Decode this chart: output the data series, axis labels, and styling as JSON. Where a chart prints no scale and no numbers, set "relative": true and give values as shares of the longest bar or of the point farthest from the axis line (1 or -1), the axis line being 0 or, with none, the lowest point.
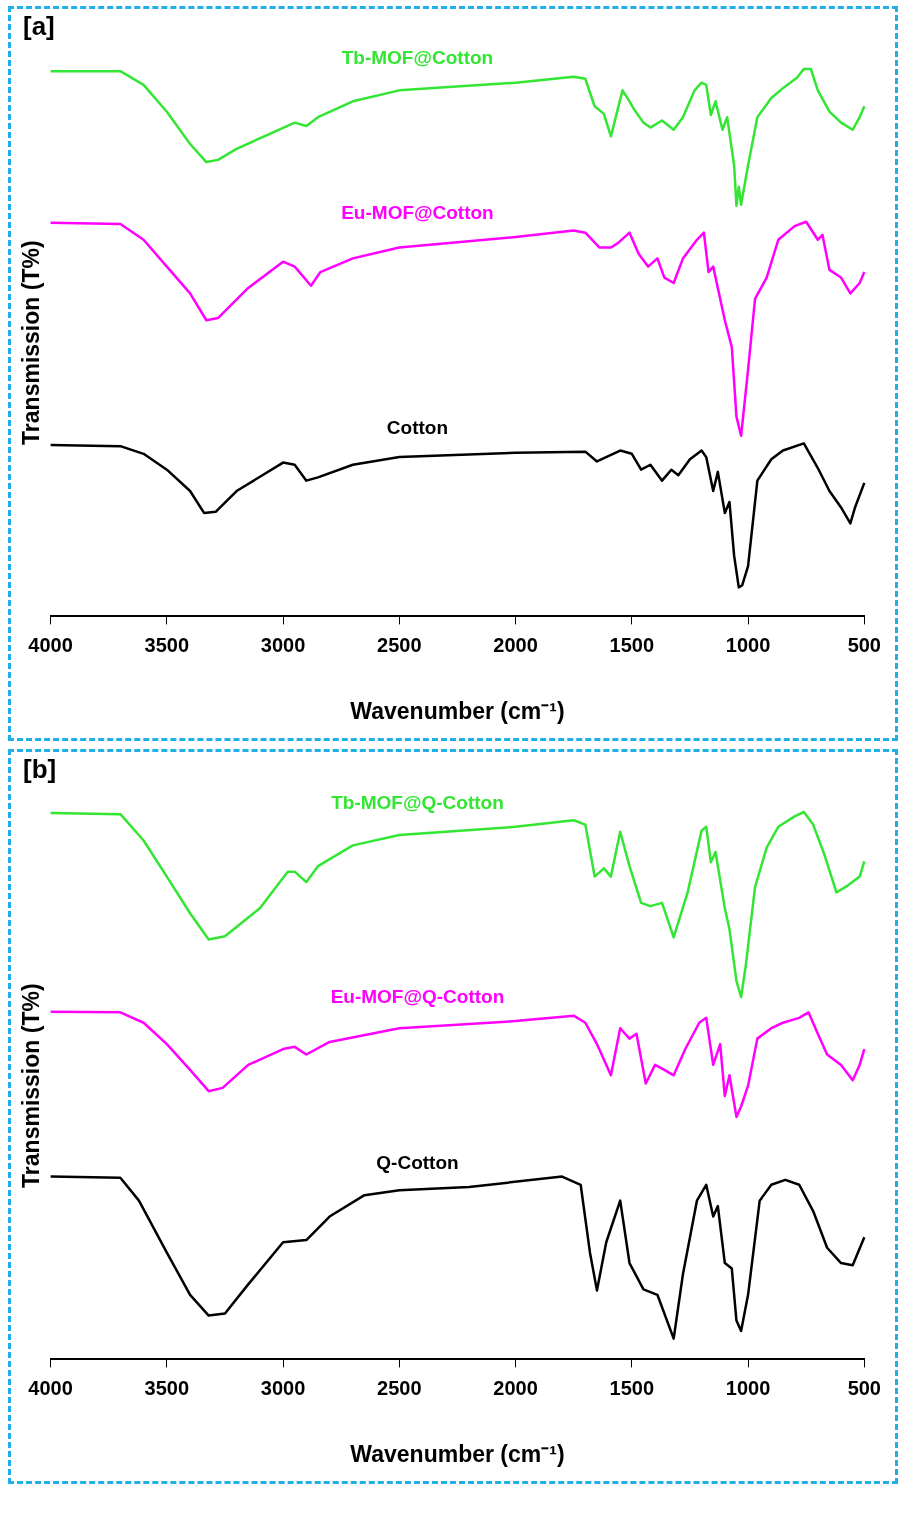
{
  "chart_data": [
    {
      "type": "line",
      "relative": true,
      "annotations": [
        "[a]"
      ],
      "xlabel": "Wavenumber (cm⁻¹)",
      "ylabel": "Transmission (T%)",
      "xlim": [
        4000,
        500
      ],
      "xticks": [
        4000,
        3500,
        3000,
        2500,
        2000,
        1500,
        1000,
        500
      ],
      "grid": false,
      "legend": false,
      "series": [
        {
          "name": "Tb-MOF@Cotton",
          "color": "#33e633",
          "x": [
            4000,
            3700,
            3600,
            3500,
            3400,
            3330,
            3280,
            3200,
            3050,
            2950,
            2900,
            2850,
            2700,
            2500,
            2000,
            1750,
            1700,
            1660,
            1620,
            1590,
            1540,
            1510,
            1490,
            1450,
            1420,
            1370,
            1320,
            1280,
            1230,
            1200,
            1180,
            1160,
            1140,
            1110,
            1090,
            1060,
            1050,
            1040,
            1030,
            1000,
            960,
            900,
            850,
            790,
            760,
            730,
            700,
            650,
            600,
            550,
            520,
            500
          ],
          "values": [
            0.996,
            0.996,
            0.971,
            0.922,
            0.863,
            0.83,
            0.834,
            0.854,
            0.883,
            0.902,
            0.896,
            0.912,
            0.941,
            0.961,
            0.975,
            0.986,
            0.982,
            0.932,
            0.918,
            0.877,
            0.961,
            0.941,
            0.926,
            0.902,
            0.893,
            0.906,
            0.889,
            0.912,
            0.961,
            0.975,
            0.971,
            0.916,
            0.941,
            0.889,
            0.912,
            0.824,
            0.75,
            0.785,
            0.752,
            0.824,
            0.912,
            0.947,
            0.965,
            0.984,
            1.0,
            1.0,
            0.961,
            0.922,
            0.902,
            0.889,
            0.912,
            0.932
          ]
        },
        {
          "name": "Eu-MOF@Cotton",
          "color": "#ff00ff",
          "x": [
            4000,
            3700,
            3600,
            3500,
            3400,
            3330,
            3280,
            3150,
            3000,
            2950,
            2880,
            2840,
            2700,
            2500,
            2000,
            1750,
            1700,
            1640,
            1590,
            1560,
            1510,
            1470,
            1430,
            1390,
            1360,
            1320,
            1280,
            1220,
            1190,
            1170,
            1150,
            1100,
            1070,
            1050,
            1030,
            1000,
            970,
            920,
            870,
            800,
            750,
            700,
            680,
            650,
            600,
            560,
            520,
            500
          ],
          "values": [
            0.719,
            0.717,
            0.688,
            0.639,
            0.59,
            0.541,
            0.545,
            0.6,
            0.648,
            0.639,
            0.604,
            0.629,
            0.654,
            0.674,
            0.693,
            0.705,
            0.701,
            0.674,
            0.674,
            0.682,
            0.701,
            0.662,
            0.639,
            0.654,
            0.619,
            0.609,
            0.654,
            0.688,
            0.701,
            0.629,
            0.639,
            0.541,
            0.492,
            0.365,
            0.33,
            0.451,
            0.58,
            0.619,
            0.688,
            0.713,
            0.721,
            0.688,
            0.697,
            0.633,
            0.619,
            0.59,
            0.609,
            0.629
          ]
        },
        {
          "name": "Cotton",
          "color": "#000000",
          "x": [
            4000,
            3700,
            3600,
            3500,
            3400,
            3340,
            3290,
            3200,
            3000,
            2950,
            2900,
            2850,
            2700,
            2500,
            2000,
            1700,
            1650,
            1550,
            1500,
            1460,
            1420,
            1370,
            1330,
            1300,
            1250,
            1200,
            1180,
            1150,
            1130,
            1100,
            1080,
            1060,
            1040,
            1025,
            1000,
            960,
            900,
            850,
            760,
            700,
            650,
            600,
            560,
            540,
            500
          ],
          "values": [
            0.313,
            0.311,
            0.297,
            0.268,
            0.229,
            0.189,
            0.191,
            0.229,
            0.281,
            0.277,
            0.248,
            0.254,
            0.277,
            0.291,
            0.299,
            0.301,
            0.283,
            0.303,
            0.297,
            0.268,
            0.277,
            0.248,
            0.268,
            0.258,
            0.287,
            0.303,
            0.291,
            0.229,
            0.264,
            0.189,
            0.209,
            0.111,
            0.053,
            0.057,
            0.092,
            0.248,
            0.287,
            0.303,
            0.316,
            0.271,
            0.229,
            0.199,
            0.17,
            0.199,
            0.244
          ]
        }
      ]
    },
    {
      "type": "line",
      "relative": true,
      "annotations": [
        "[b]"
      ],
      "xlabel": "Wavenumber (cm⁻¹)",
      "ylabel": "Transmission (T%)",
      "xlim": [
        4000,
        500
      ],
      "xticks": [
        4000,
        3500,
        3000,
        2500,
        2000,
        1500,
        1000,
        500
      ],
      "grid": false,
      "legend": false,
      "series": [
        {
          "name": "Tb-MOF@Q-Cotton",
          "color": "#33e633",
          "x": [
            4000,
            3700,
            3600,
            3500,
            3400,
            3320,
            3250,
            3100,
            2980,
            2950,
            2900,
            2850,
            2700,
            2500,
            2000,
            1750,
            1700,
            1660,
            1620,
            1590,
            1550,
            1510,
            1460,
            1420,
            1370,
            1320,
            1260,
            1200,
            1180,
            1160,
            1140,
            1100,
            1080,
            1050,
            1030,
            1010,
            970,
            920,
            870,
            800,
            760,
            720,
            670,
            620,
            570,
            520,
            500
          ],
          "values": [
            0.998,
            0.996,
            0.948,
            0.882,
            0.815,
            0.767,
            0.773,
            0.824,
            0.891,
            0.891,
            0.872,
            0.901,
            0.939,
            0.958,
            0.973,
            0.985,
            0.977,
            0.882,
            0.897,
            0.882,
            0.964,
            0.901,
            0.834,
            0.828,
            0.834,
            0.771,
            0.853,
            0.966,
            0.973,
            0.908,
            0.927,
            0.824,
            0.786,
            0.691,
            0.662,
            0.719,
            0.863,
            0.935,
            0.973,
            0.992,
            1.0,
            0.977,
            0.92,
            0.853,
            0.866,
            0.882,
            0.91
          ]
        },
        {
          "name": "Eu-MOF@Q-Cotton",
          "color": "#ff00ff",
          "x": [
            4000,
            3700,
            3600,
            3500,
            3400,
            3320,
            3260,
            3150,
            3000,
            2950,
            2900,
            2800,
            2500,
            2000,
            1750,
            1700,
            1650,
            1590,
            1550,
            1510,
            1480,
            1440,
            1400,
            1360,
            1320,
            1270,
            1210,
            1180,
            1150,
            1120,
            1100,
            1080,
            1050,
            1030,
            1000,
            960,
            900,
            850,
            780,
            740,
            700,
            660,
            600,
            550,
            520,
            500
          ],
          "values": [
            0.635,
            0.634,
            0.615,
            0.576,
            0.529,
            0.49,
            0.496,
            0.538,
            0.567,
            0.571,
            0.557,
            0.58,
            0.605,
            0.618,
            0.628,
            0.615,
            0.576,
            0.519,
            0.605,
            0.586,
            0.595,
            0.504,
            0.538,
            0.529,
            0.519,
            0.567,
            0.615,
            0.624,
            0.538,
            0.576,
            0.481,
            0.519,
            0.443,
            0.462,
            0.5,
            0.586,
            0.605,
            0.615,
            0.624,
            0.634,
            0.595,
            0.557,
            0.538,
            0.51,
            0.538,
            0.567
          ]
        },
        {
          "name": "Q-Cotton",
          "color": "#000000",
          "x": [
            4000,
            3700,
            3620,
            3500,
            3400,
            3320,
            3250,
            3150,
            3000,
            2900,
            2800,
            2650,
            2500,
            2200,
            1800,
            1720,
            1680,
            1650,
            1610,
            1550,
            1510,
            1450,
            1390,
            1320,
            1280,
            1220,
            1180,
            1150,
            1130,
            1100,
            1070,
            1050,
            1030,
            1000,
            950,
            900,
            840,
            780,
            720,
            660,
            600,
            550,
            500
          ],
          "values": [
            0.334,
            0.332,
            0.29,
            0.195,
            0.118,
            0.08,
            0.084,
            0.137,
            0.214,
            0.218,
            0.261,
            0.3,
            0.309,
            0.315,
            0.334,
            0.319,
            0.195,
            0.126,
            0.214,
            0.29,
            0.176,
            0.128,
            0.118,
            0.038,
            0.156,
            0.29,
            0.319,
            0.261,
            0.28,
            0.176,
            0.166,
            0.071,
            0.052,
            0.118,
            0.29,
            0.319,
            0.328,
            0.319,
            0.271,
            0.204,
            0.176,
            0.172,
            0.223
          ]
        }
      ]
    }
  ]
}
